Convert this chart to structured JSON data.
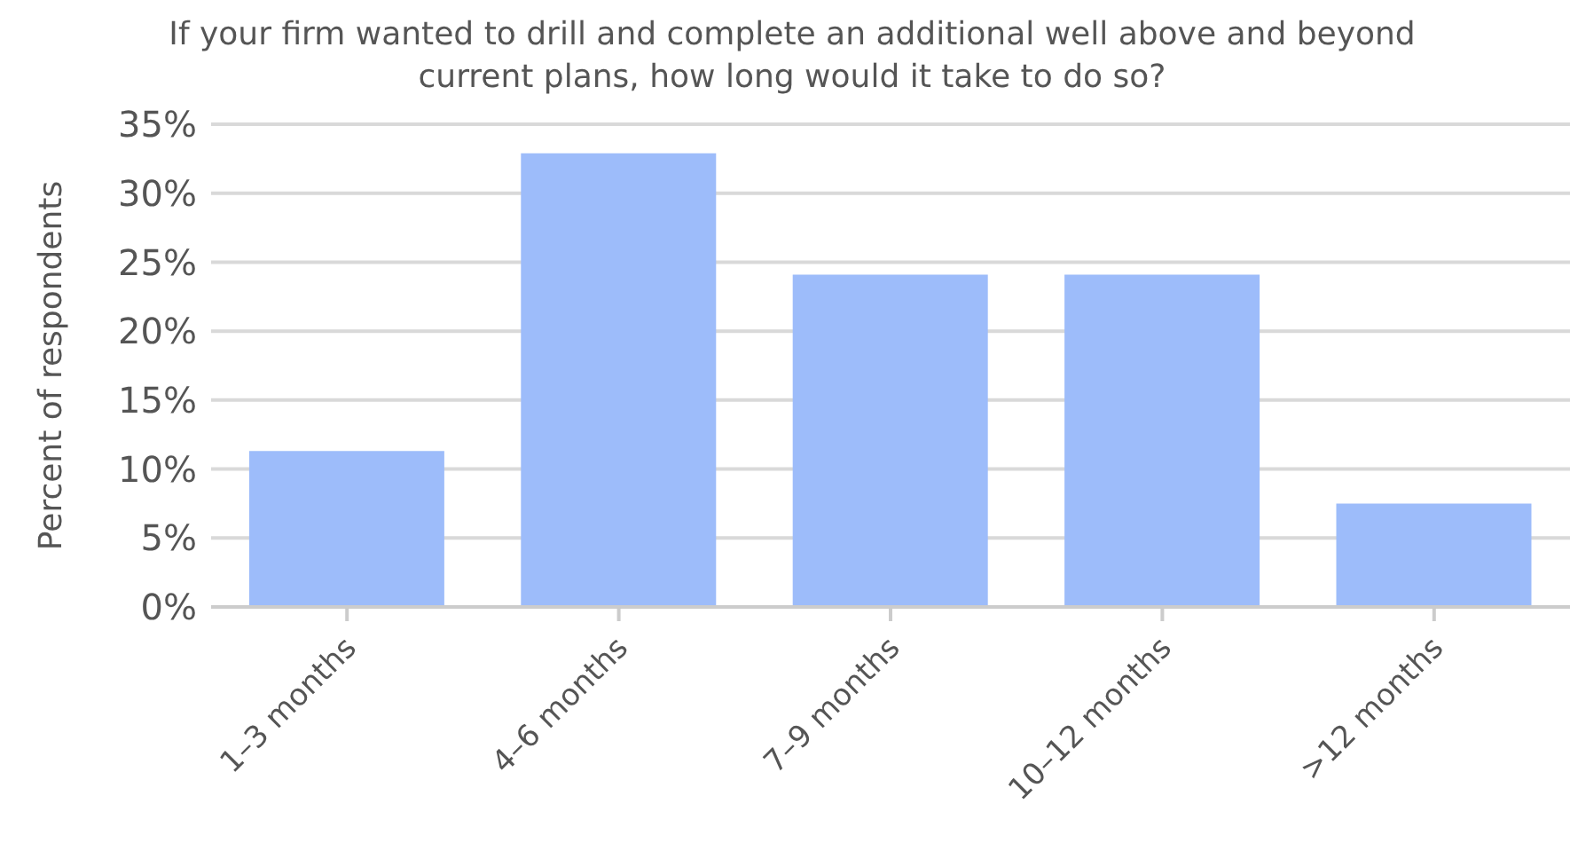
{
  "chart_data": {
    "type": "bar",
    "title": "If your firm wanted to drill and complete an additional well above and beyond current plans, how long would it take to do so?",
    "ylabel": "Percent of respondents",
    "categories": [
      "1–3 months",
      "4–6 months",
      "7–9 months",
      "10–12 months",
      ">12 months"
    ],
    "values": [
      11.3,
      32.9,
      24.1,
      24.1,
      7.5
    ],
    "color": "#9dbcfa",
    "ylim": [
      0,
      35
    ],
    "yticks": [
      {
        "value": 0,
        "label": "0%"
      },
      {
        "value": 5,
        "label": "5%"
      },
      {
        "value": 10,
        "label": "10%"
      },
      {
        "value": 15,
        "label": "15%"
      },
      {
        "value": 20,
        "label": "20%"
      },
      {
        "value": 25,
        "label": "25%"
      },
      {
        "value": 30,
        "label": "30%"
      },
      {
        "value": 35,
        "label": "35%"
      }
    ],
    "grid": "y"
  }
}
